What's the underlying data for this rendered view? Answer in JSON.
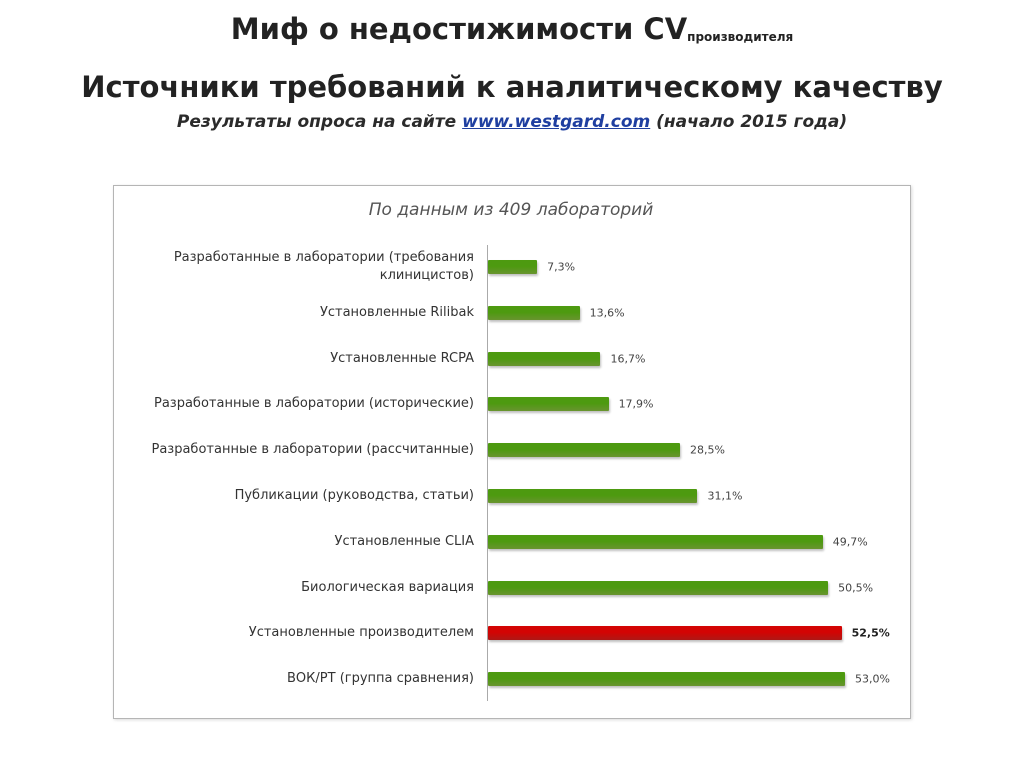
{
  "header": {
    "title": "Миф о недостижимости CV",
    "title_subscript": "производителя",
    "subtitle": "Источники требований к аналитическому качеству",
    "note_prefix": "Результаты опроса на сайте",
    "note_link": "www.westgard.com",
    "note_suffix": "(начало 2015 года)"
  },
  "chart_data": {
    "type": "hbar",
    "title": "По данным из 409 лабораторий",
    "categories": [
      "Разработанные в лаборатории (требования клиницистов)",
      "Установленные Rilibak",
      "Установленные RCPA",
      "Разработанные в лаборатории (исторические)",
      "Разработанные в лаборатории (рассчитанные)",
      "Публикации (руководства, статьи)",
      "Установленные CLIA",
      "Биологическая вариация",
      "Установленные производителем",
      "ВОК/PT (группа сравнения)"
    ],
    "values": [
      7.3,
      13.6,
      16.7,
      17.9,
      28.5,
      31.1,
      49.7,
      50.5,
      52.5,
      53.0
    ],
    "value_labels": [
      "7,3%",
      "13,6%",
      "16,7%",
      "17,9%",
      "28,5%",
      "31,1%",
      "49,7%",
      "50,5%",
      "52,5%",
      "53,0%"
    ],
    "colors": [
      "#8cc63f",
      "#8cc63f",
      "#8cc63f",
      "#8cc63f",
      "#8cc63f",
      "#8cc63f",
      "#8cc63f",
      "#8cc63f",
      "#e8201c",
      "#8cc63f"
    ]
  }
}
